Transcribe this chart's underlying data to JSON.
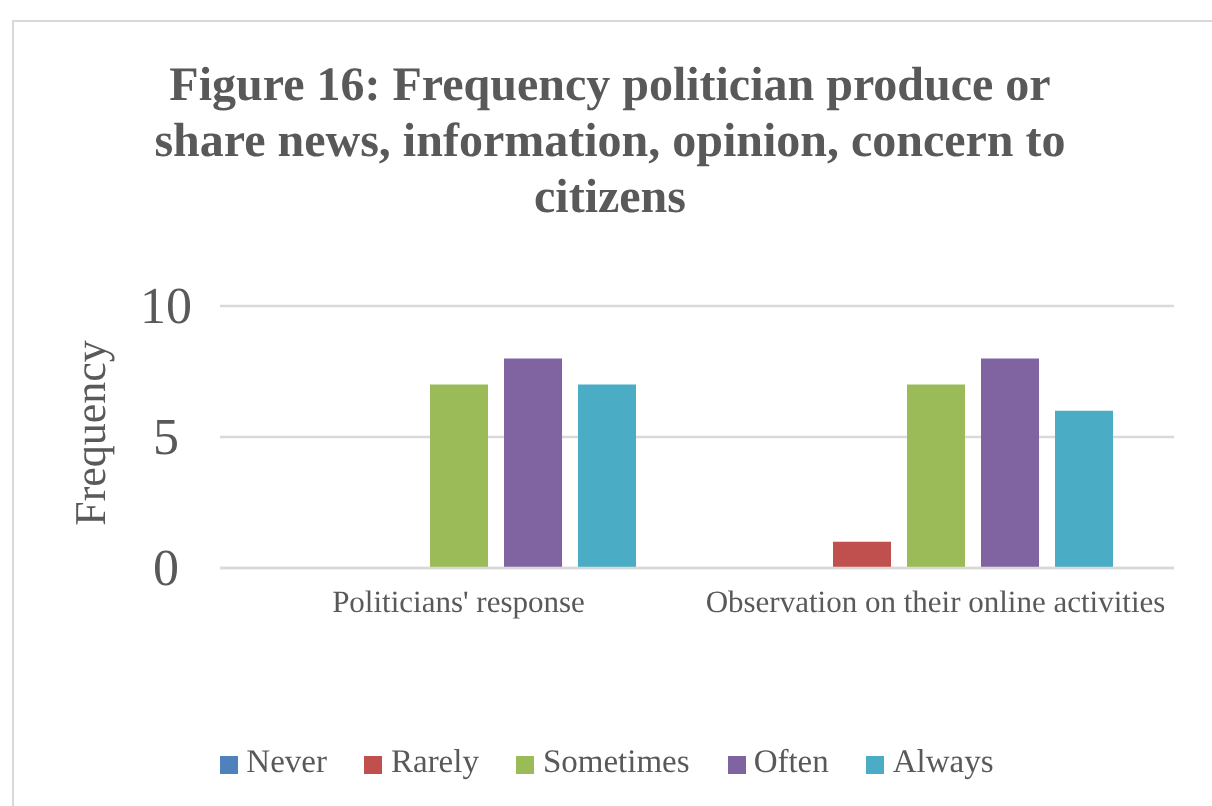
{
  "chart_data": {
    "type": "bar",
    "title": "Figure 16: Frequency politician produce or share news, information, opinion, concern to citizens",
    "ylabel": "Frequency",
    "categories": [
      "Politicians' response",
      "Observation on their online activities"
    ],
    "series": [
      {
        "name": "Never",
        "color": "#4f81bd",
        "values": [
          0,
          0
        ]
      },
      {
        "name": "Rarely",
        "color": "#c0504d",
        "values": [
          0,
          1
        ]
      },
      {
        "name": "Sometimes",
        "color": "#9bbb59",
        "values": [
          7,
          7
        ]
      },
      {
        "name": "Often",
        "color": "#8064a2",
        "values": [
          8,
          8
        ]
      },
      {
        "name": "Always",
        "color": "#4bacc6",
        "values": [
          7,
          6
        ]
      }
    ],
    "ylim": [
      0,
      10
    ],
    "yticks": [
      0,
      5,
      10
    ],
    "grid": "y",
    "legend": "bottom"
  }
}
